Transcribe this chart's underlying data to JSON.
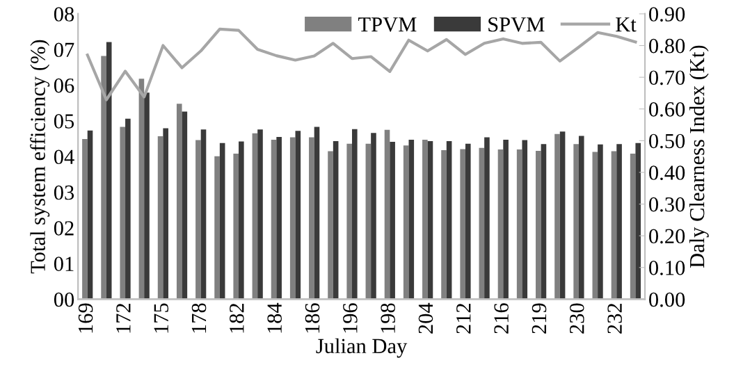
{
  "chart_data": {
    "type": "bar",
    "xlabel": "Julian Day",
    "ylabel": "Total system efficiency (%)",
    "y2label": "Daly Clearness Index (Kt)",
    "categories": [
      "169",
      null,
      "172",
      null,
      "175",
      null,
      "178",
      null,
      "182",
      null,
      "184",
      null,
      "186",
      null,
      "196",
      null,
      "198",
      null,
      "204",
      null,
      "212",
      null,
      "216",
      null,
      "219",
      null,
      "230",
      null,
      "232",
      null
    ],
    "series": [
      {
        "name": "TPVM",
        "color": "#808080",
        "values": [
          4.49,
          6.82,
          4.83,
          6.18,
          4.57,
          5.48,
          4.46,
          4.01,
          4.08,
          4.65,
          4.47,
          4.54,
          4.54,
          4.15,
          4.36,
          4.36,
          4.75,
          4.31,
          4.47,
          4.18,
          4.21,
          4.24,
          4.2,
          4.2,
          4.16,
          4.63,
          4.35,
          4.13,
          4.15,
          4.08
        ]
      },
      {
        "name": "SPVM",
        "color": "#3a3a3a",
        "values": [
          4.73,
          7.21,
          5.06,
          5.79,
          4.79,
          5.26,
          4.76,
          4.38,
          4.42,
          4.76,
          4.55,
          4.72,
          4.83,
          4.43,
          4.77,
          4.66,
          4.41,
          4.47,
          4.43,
          4.43,
          4.36,
          4.54,
          4.47,
          4.46,
          4.35,
          4.7,
          4.58,
          4.34,
          4.35,
          4.38
        ]
      },
      {
        "name": "Kt",
        "type": "line",
        "axis": "y2",
        "color": "#a6a6a6",
        "values": [
          0.77,
          0.629,
          0.719,
          0.638,
          0.8,
          0.73,
          0.783,
          0.852,
          0.848,
          0.788,
          0.768,
          0.754,
          0.767,
          0.807,
          0.759,
          0.765,
          0.718,
          0.817,
          0.783,
          0.819,
          0.772,
          0.807,
          0.821,
          0.807,
          0.81,
          0.751,
          0.795,
          0.841,
          0.829,
          0.811
        ]
      }
    ],
    "ylim": [
      0,
      8
    ],
    "yticks": [
      {
        "value": 0,
        "label": "00"
      },
      {
        "value": 1,
        "label": "01"
      },
      {
        "value": 2,
        "label": "02"
      },
      {
        "value": 3,
        "label": "03"
      },
      {
        "value": 4,
        "label": "04"
      },
      {
        "value": 5,
        "label": "05"
      },
      {
        "value": 6,
        "label": "06"
      },
      {
        "value": 7,
        "label": "07"
      },
      {
        "value": 8,
        "label": "08"
      }
    ],
    "y2lim": [
      0,
      0.9
    ],
    "y2ticks": [
      {
        "value": 0,
        "label": "0.00"
      },
      {
        "value": 0.1,
        "label": "0.10"
      },
      {
        "value": 0.2,
        "label": "0.20"
      },
      {
        "value": 0.3,
        "label": "0.30"
      },
      {
        "value": 0.4,
        "label": "0.40"
      },
      {
        "value": 0.5,
        "label": "0.50"
      },
      {
        "value": 0.6,
        "label": "0.60"
      },
      {
        "value": 0.7,
        "label": "0.70"
      },
      {
        "value": 0.8,
        "label": "0.80"
      },
      {
        "value": 0.9,
        "label": "0.90"
      }
    ],
    "legend": "top right",
    "grid": false,
    "marker": "none",
    "line_style": "solid"
  }
}
